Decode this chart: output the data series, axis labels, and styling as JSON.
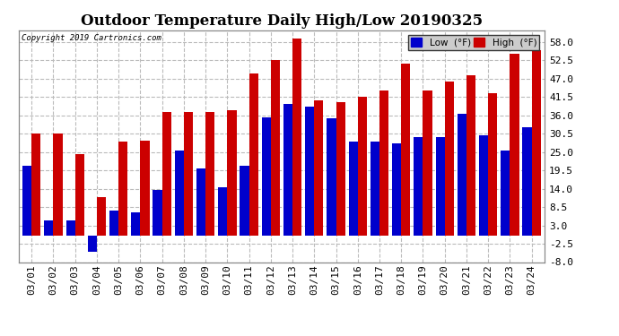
{
  "title": "Outdoor Temperature Daily High/Low 20190325",
  "copyright": "Copyright 2019 Cartronics.com",
  "legend_low": "Low  (°F)",
  "legend_high": "High  (°F)",
  "dates": [
    "03/01",
    "03/02",
    "03/03",
    "03/04",
    "03/05",
    "03/06",
    "03/07",
    "03/08",
    "03/09",
    "03/10",
    "03/11",
    "03/12",
    "03/13",
    "03/14",
    "03/15",
    "03/16",
    "03/17",
    "03/18",
    "03/19",
    "03/20",
    "03/21",
    "03/22",
    "03/23",
    "03/24"
  ],
  "high": [
    30.5,
    30.5,
    24.5,
    11.5,
    28.0,
    28.5,
    37.0,
    37.0,
    37.0,
    37.5,
    48.5,
    52.5,
    59.0,
    40.5,
    40.0,
    41.5,
    43.5,
    51.5,
    43.5,
    46.0,
    48.0,
    42.5,
    54.5,
    55.5
  ],
  "low": [
    21.0,
    4.5,
    4.5,
    -5.0,
    7.5,
    7.0,
    13.5,
    25.5,
    20.0,
    14.5,
    21.0,
    35.5,
    39.5,
    38.5,
    35.0,
    28.0,
    28.0,
    27.5,
    29.5,
    29.5,
    36.5,
    30.0,
    25.5,
    32.5
  ],
  "bar_color_low": "#0000cc",
  "bar_color_high": "#cc0000",
  "ylim_min": -8.0,
  "ylim_max": 61.5,
  "yticks": [
    -8.0,
    -2.5,
    3.0,
    8.5,
    14.0,
    19.5,
    25.0,
    30.5,
    36.0,
    41.5,
    47.0,
    52.5,
    58.0
  ],
  "background_color": "#ffffff",
  "grid_color": "#bbbbbb",
  "title_fontsize": 12,
  "tick_fontsize": 8,
  "bar_width": 0.42,
  "fig_width": 6.9,
  "fig_height": 3.75,
  "dpi": 100
}
